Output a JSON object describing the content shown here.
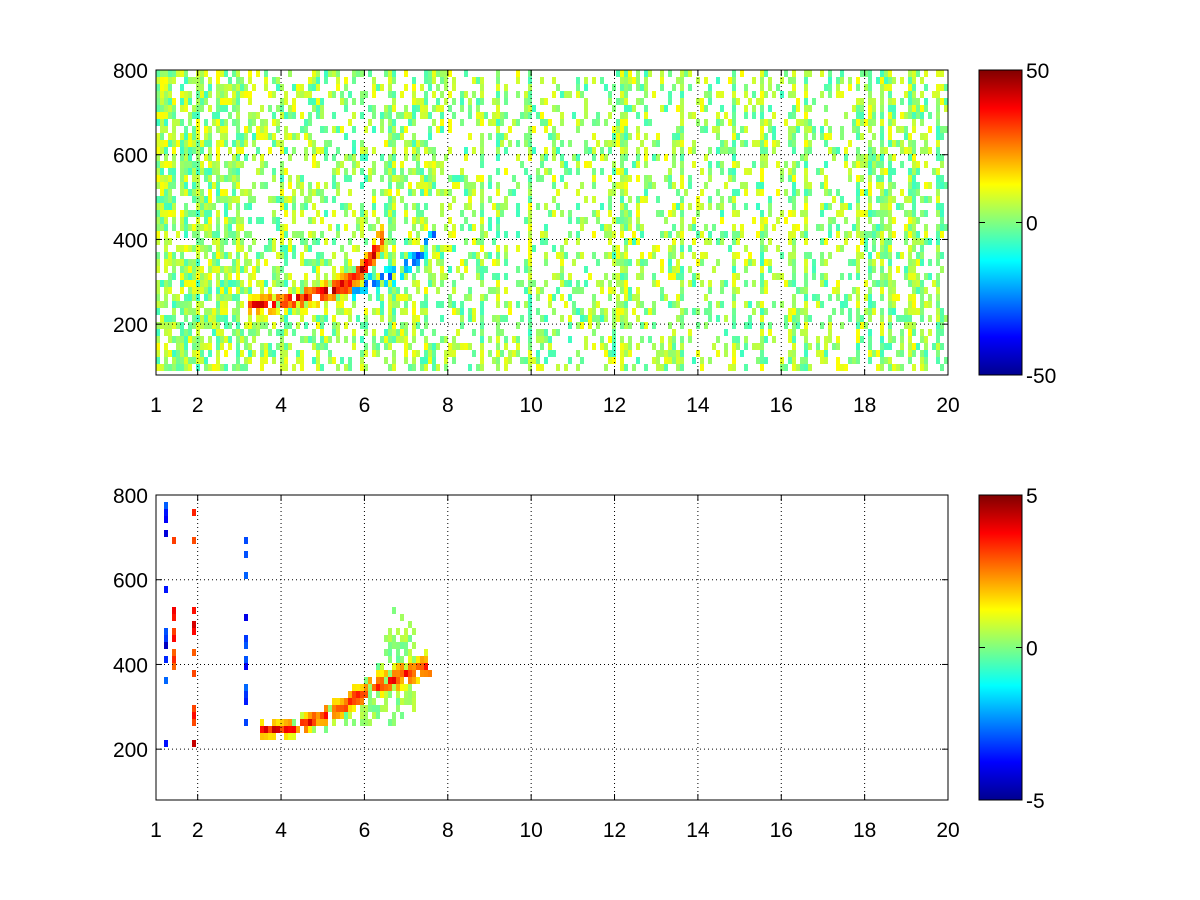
{
  "chart_data": [
    {
      "type": "heatmap",
      "title": "",
      "xlabel": "",
      "ylabel": "",
      "xlim": [
        1,
        20
      ],
      "ylim": [
        80,
        800
      ],
      "xticks": [
        1,
        2,
        4,
        6,
        8,
        10,
        12,
        14,
        16,
        18,
        20
      ],
      "xtick_labels": [
        "1",
        "2",
        "4",
        "6",
        "8",
        "10",
        "12",
        "14",
        "16",
        "18",
        "20"
      ],
      "yticks": [
        200,
        400,
        600,
        800
      ],
      "ytick_labels": [
        "200",
        "400",
        "600",
        "800"
      ],
      "grid": true,
      "colormap": "jet",
      "clim": [
        -50,
        50
      ],
      "colorbar_ticks": [
        50,
        0,
        -50
      ],
      "colorbar_tick_labels": [
        "50",
        "0",
        "-50"
      ],
      "ridge": {
        "x": [
          3.2,
          3.8,
          4.4,
          5.0,
          5.6,
          6.1,
          6.5
        ],
        "y": [
          245,
          248,
          258,
          272,
          295,
          340,
          420
        ],
        "value": 40
      },
      "trough": {
        "x": [
          5.6,
          6.2,
          6.8,
          7.3,
          7.7
        ],
        "y": [
          280,
          295,
          320,
          360,
          410
        ],
        "value": -30
      },
      "noise_amplitude": 10,
      "noise_coverage": 0.35
    },
    {
      "type": "heatmap",
      "title": "",
      "xlabel": "",
      "ylabel": "",
      "xlim": [
        1,
        20
      ],
      "ylim": [
        80,
        800
      ],
      "xticks": [
        1,
        2,
        4,
        6,
        8,
        10,
        12,
        14,
        16,
        18,
        20
      ],
      "xtick_labels": [
        "1",
        "2",
        "4",
        "6",
        "8",
        "10",
        "12",
        "14",
        "16",
        "18",
        "20"
      ],
      "yticks": [
        200,
        400,
        600,
        800
      ],
      "ytick_labels": [
        "200",
        "400",
        "600",
        "800"
      ],
      "grid": true,
      "colormap": "jet",
      "clim": [
        -5,
        5
      ],
      "colorbar_ticks": [
        5,
        0,
        -5
      ],
      "colorbar_tick_labels": [
        "5",
        "0",
        "-5"
      ],
      "ridge": {
        "x": [
          3.5,
          4.3,
          5.0,
          5.6,
          6.2,
          6.8,
          7.6
        ],
        "y": [
          245,
          250,
          275,
          310,
          345,
          370,
          400
        ],
        "value": 3.5
      },
      "band": {
        "x": [
          3.5,
          4.5,
          5.5,
          6.3,
          6.7,
          7.2
        ],
        "y": [
          245,
          265,
          305,
          380,
          520,
          470
        ],
        "value": 0.5
      },
      "streaks": [
        {
          "x": 1.25,
          "y": [
            150,
            790
          ],
          "value": -4.5
        },
        {
          "x": 1.4,
          "y": [
            380,
            720
          ],
          "value": 4
        },
        {
          "x": 1.95,
          "y": [
            140,
            790
          ],
          "value": 4.5
        },
        {
          "x": 3.2,
          "y": [
            260,
            700
          ],
          "value": -4
        }
      ]
    }
  ]
}
